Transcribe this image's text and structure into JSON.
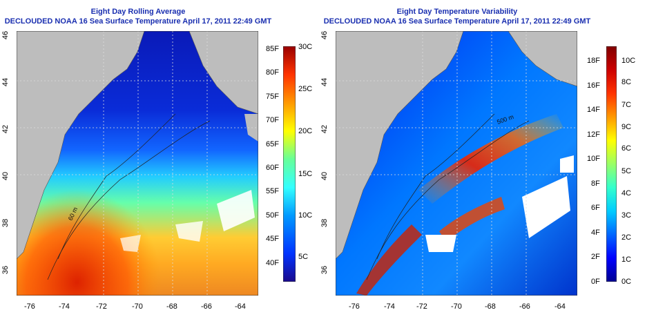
{
  "left_panel": {
    "title_line1": "Eight Day Rolling Average",
    "title_line2": "DECLOUDED NOAA 16 Sea Surface Temperature April 17, 2011 22:49 GMT",
    "x_ticks": [
      "-76",
      "-74",
      "-72",
      "-70",
      "-68",
      "-66",
      "-64"
    ],
    "y_ticks": [
      "36",
      "38",
      "40",
      "42",
      "44",
      "46"
    ],
    "contour_label": "60 m",
    "colorbar": {
      "fahrenheit": [
        "40F",
        "45F",
        "50F",
        "55F",
        "60F",
        "65F",
        "70F",
        "75F",
        "80F",
        "85F"
      ],
      "celsius": [
        "5C",
        "10C",
        "15C",
        "20C",
        "25C",
        "30C"
      ],
      "colors": [
        "#1a0a8c",
        "#0033ff",
        "#0099ff",
        "#33ffff",
        "#66ff99",
        "#ffff00",
        "#ff9900",
        "#ff3300",
        "#990000"
      ]
    }
  },
  "right_panel": {
    "title_line1": "Eight Day Temperature Variability",
    "title_line2": "DECLOUDED NOAA 16 Sea Surface Temperature April 17, 2011 22:49 GMT",
    "x_ticks": [
      "-76",
      "-74",
      "-72",
      "-70",
      "-68",
      "-66",
      "-64"
    ],
    "y_ticks": [
      "36",
      "38",
      "40",
      "42",
      "44",
      "46"
    ],
    "contour_label": "500 m",
    "colorbar": {
      "fahrenheit": [
        "0F",
        "2F",
        "4F",
        "6F",
        "8F",
        "10F",
        "12F",
        "14F",
        "16F",
        "18F"
      ],
      "celsius": [
        "0C",
        "1C",
        "2C",
        "3C",
        "4C",
        "5C",
        "6C",
        "7C",
        "8C",
        "9C",
        "10C"
      ],
      "colors": [
        "#000090",
        "#0000ff",
        "#0066ff",
        "#00ccff",
        "#33ffcc",
        "#99ff66",
        "#ffff00",
        "#ff9900",
        "#ff3300",
        "#cc0000",
        "#800000"
      ]
    }
  },
  "colors": {
    "land": "#bdbdbd",
    "title": "#1a2fb0",
    "cloud": "#ffffff"
  }
}
